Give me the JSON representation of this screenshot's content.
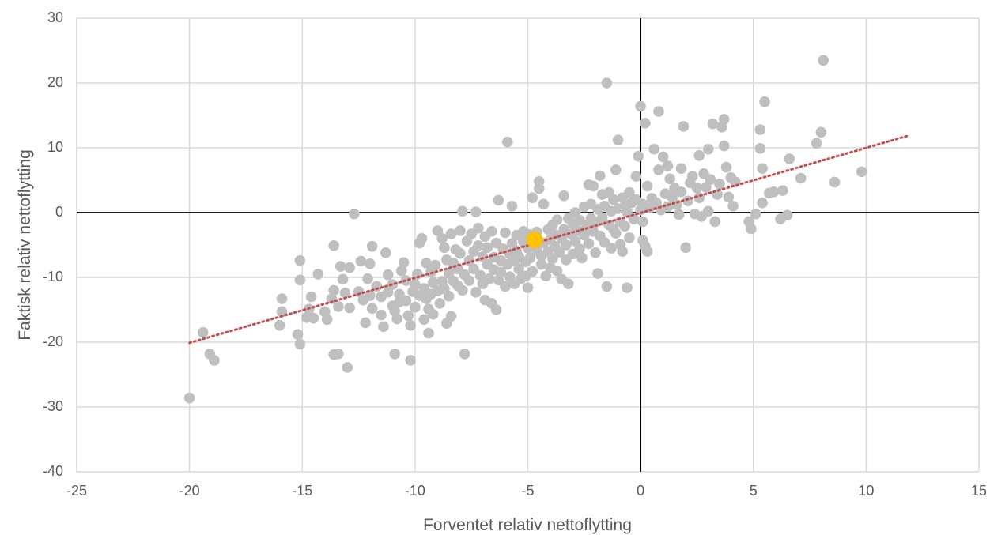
{
  "chart_data": {
    "type": "scatter",
    "title": "",
    "xlabel": "Forventet relativ nettoflytting",
    "ylabel": "Faktisk relativ nettoflytting",
    "xlim": [
      -25,
      15
    ],
    "ylim": [
      -40,
      30
    ],
    "x_ticks": [
      "-25",
      "-20",
      "-15",
      "-10",
      "-5",
      "0",
      "5",
      "10",
      "15"
    ],
    "y_ticks": [
      "-40",
      "-30",
      "-20",
      "-10",
      "0",
      "10",
      "20",
      "30"
    ],
    "grid": true,
    "legend": "none",
    "colors": {
      "points": "#bfbfbf",
      "highlight": "#ffc000",
      "trendline": "#c0504d",
      "gridline": "#d9d9d9",
      "zero_axes": "#000000"
    },
    "trendline": {
      "style": "dotted",
      "x": [
        -20,
        11.8
      ],
      "y": [
        -20.1,
        11.8
      ]
    },
    "highlight": {
      "x": -4.7,
      "y": -4.2
    },
    "series": [
      {
        "points": [
          [
            -20,
            -28.6
          ],
          [
            -19.4,
            -18.5
          ],
          [
            -19.1,
            -21.8
          ],
          [
            -18.9,
            -22.8
          ],
          [
            -16.0,
            -17.4
          ],
          [
            -15.9,
            -15.3
          ],
          [
            -15.9,
            -13.3
          ],
          [
            -15.2,
            -18.8
          ],
          [
            -15.1,
            -20.3
          ],
          [
            -15.1,
            -10.4
          ],
          [
            -15.1,
            -7.4
          ],
          [
            -14.8,
            -16.2
          ],
          [
            -14.7,
            -14.9
          ],
          [
            -14.6,
            -13.0
          ],
          [
            -14.5,
            -16.3
          ],
          [
            -14.3,
            -9.5
          ],
          [
            -14.0,
            -15.3
          ],
          [
            -13.9,
            -16.5
          ],
          [
            -13.7,
            -13.3
          ],
          [
            -13.6,
            -12.0
          ],
          [
            -13.6,
            -5.1
          ],
          [
            -13.6,
            -21.9
          ],
          [
            -13.4,
            -21.8
          ],
          [
            -13.4,
            -14.5
          ],
          [
            -13.3,
            -8.3
          ],
          [
            -13.2,
            -10.3
          ],
          [
            -13.1,
            -12.4
          ],
          [
            -13.0,
            -23.9
          ],
          [
            -12.9,
            -14.7
          ],
          [
            -12.9,
            -8.5
          ],
          [
            -12.7,
            -0.2
          ],
          [
            -12.5,
            -12.2
          ],
          [
            -12.4,
            -7.5
          ],
          [
            -12.3,
            -13.5
          ],
          [
            -12.2,
            -17.0
          ],
          [
            -12.1,
            -10.2
          ],
          [
            -12.0,
            -12.8
          ],
          [
            -12.0,
            -7.9
          ],
          [
            -11.9,
            -14.8
          ],
          [
            -11.9,
            -5.2
          ],
          [
            -11.7,
            -11.4
          ],
          [
            -11.5,
            -13.0
          ],
          [
            -11.5,
            -15.8
          ],
          [
            -11.4,
            -17.6
          ],
          [
            -11.3,
            -6.2
          ],
          [
            -11.2,
            -12.3
          ],
          [
            -11.2,
            -9.6
          ],
          [
            -11.0,
            -14.4
          ],
          [
            -11.0,
            -11.1
          ],
          [
            -10.9,
            -15.2
          ],
          [
            -10.9,
            -21.8
          ],
          [
            -10.8,
            -16.4
          ],
          [
            -10.7,
            -13.8
          ],
          [
            -10.7,
            -12.6
          ],
          [
            -10.6,
            -9.0
          ],
          [
            -10.5,
            -7.7
          ],
          [
            -10.4,
            -10.5
          ],
          [
            -10.4,
            -13.6
          ],
          [
            -10.3,
            -15.9
          ],
          [
            -10.2,
            -17.4
          ],
          [
            -10.2,
            -22.8
          ],
          [
            -10.1,
            -12.2
          ],
          [
            -10.0,
            -11.1
          ],
          [
            -10.0,
            -14.6
          ],
          [
            -9.9,
            -9.5
          ],
          [
            -9.8,
            -12.8
          ],
          [
            -9.8,
            -4.7
          ],
          [
            -9.7,
            -4.0
          ],
          [
            -9.6,
            -11.7
          ],
          [
            -9.6,
            -16.5
          ],
          [
            -9.5,
            -13.3
          ],
          [
            -9.5,
            -7.8
          ],
          [
            -9.4,
            -14.9
          ],
          [
            -9.4,
            -18.6
          ],
          [
            -9.3,
            -12.6
          ],
          [
            -9.3,
            -9.2
          ],
          [
            -9.2,
            -10.8
          ],
          [
            -9.2,
            -15.7
          ],
          [
            -9.1,
            -8.1
          ],
          [
            -9.0,
            -12.1
          ],
          [
            -9.0,
            -2.8
          ],
          [
            -8.9,
            -14.0
          ],
          [
            -8.8,
            -10.6
          ],
          [
            -8.8,
            -4.0
          ],
          [
            -8.7,
            -5.4
          ],
          [
            -8.7,
            -11.8
          ],
          [
            -8.6,
            -7.3
          ],
          [
            -8.6,
            -17.1
          ],
          [
            -8.5,
            -9.4
          ],
          [
            -8.5,
            -12.9
          ],
          [
            -8.4,
            -3.3
          ],
          [
            -8.4,
            -16.0
          ],
          [
            -8.3,
            -7.8
          ],
          [
            -8.3,
            -10.6
          ],
          [
            -8.2,
            -5.7
          ],
          [
            -8.1,
            -11.3
          ],
          [
            -8.1,
            -8.7
          ],
          [
            -8.0,
            -2.8
          ],
          [
            -8.0,
            -6.3
          ],
          [
            -7.9,
            -12.0
          ],
          [
            -7.9,
            0.2
          ],
          [
            -7.8,
            -21.8
          ],
          [
            -7.8,
            -9.6
          ],
          [
            -7.7,
            -4.4
          ],
          [
            -7.6,
            -7.4
          ],
          [
            -7.6,
            -10.5
          ],
          [
            -7.5,
            -3.3
          ],
          [
            -7.4,
            -6.0
          ],
          [
            -7.4,
            -8.7
          ],
          [
            -7.3,
            0.1
          ],
          [
            -7.3,
            -12.3
          ],
          [
            -7.2,
            -2.4
          ],
          [
            -7.2,
            -5.1
          ],
          [
            -7.1,
            -9.7
          ],
          [
            -7.0,
            -6.8
          ],
          [
            -7.0,
            -11.0
          ],
          [
            -6.9,
            -3.7
          ],
          [
            -6.9,
            -13.5
          ],
          [
            -6.8,
            -8.0
          ],
          [
            -6.8,
            -5.4
          ],
          [
            -6.7,
            -10.2
          ],
          [
            -6.6,
            -2.9
          ],
          [
            -6.6,
            -14.0
          ],
          [
            -6.5,
            -6.9
          ],
          [
            -6.5,
            -8.8
          ],
          [
            -6.4,
            -15.0
          ],
          [
            -6.4,
            -4.7
          ],
          [
            -6.3,
            -10.4
          ],
          [
            -6.3,
            1.9
          ],
          [
            -6.2,
            -7.4
          ],
          [
            -6.2,
            -9.2
          ],
          [
            -6.1,
            -5.6
          ],
          [
            -6.0,
            -11.4
          ],
          [
            -6.0,
            -3.1
          ],
          [
            -5.9,
            -8.0
          ],
          [
            -5.9,
            10.9
          ],
          [
            -5.8,
            -6.4
          ],
          [
            -5.8,
            -9.9
          ],
          [
            -5.7,
            -4.8
          ],
          [
            -5.7,
            1.0
          ],
          [
            -5.6,
            -7.5
          ],
          [
            -5.6,
            -11.0
          ],
          [
            -5.5,
            -5.9
          ],
          [
            -5.5,
            -3.5
          ],
          [
            -5.4,
            -8.7
          ],
          [
            -5.4,
            -6.8
          ],
          [
            -5.3,
            -10.2
          ],
          [
            -5.2,
            -4.5
          ],
          [
            -5.2,
            -2.9
          ],
          [
            -5.1,
            -7.6
          ],
          [
            -5.1,
            -9.8
          ],
          [
            -5.0,
            -5.5
          ],
          [
            -5.0,
            -11.6
          ],
          [
            -4.9,
            -3.4
          ],
          [
            -4.9,
            -7.0
          ],
          [
            -4.8,
            -9.1
          ],
          [
            -4.8,
            2.3
          ],
          [
            -4.6,
            -5.9
          ],
          [
            -4.6,
            -3.0
          ],
          [
            -4.5,
            3.7
          ],
          [
            -4.5,
            4.8
          ],
          [
            -4.4,
            -6.7
          ],
          [
            -4.4,
            -8.0
          ],
          [
            -4.3,
            -4.7
          ],
          [
            -4.3,
            1.3
          ],
          [
            -4.2,
            -9.8
          ],
          [
            -4.1,
            -2.6
          ],
          [
            -4.1,
            -6.0
          ],
          [
            -4.0,
            -8.5
          ],
          [
            -4.0,
            -4.2
          ],
          [
            -3.9,
            -1.9
          ],
          [
            -3.9,
            -7.1
          ],
          [
            -3.8,
            -5.2
          ],
          [
            -3.8,
            -3.4
          ],
          [
            -3.7,
            -9.0
          ],
          [
            -3.7,
            -1.1
          ],
          [
            -3.6,
            -6.1
          ],
          [
            -3.5,
            -10.3
          ],
          [
            -3.5,
            -4.0
          ],
          [
            -3.4,
            2.6
          ],
          [
            -3.4,
            -2.6
          ],
          [
            -3.3,
            -7.3
          ],
          [
            -3.3,
            -5.0
          ],
          [
            -3.2,
            -0.9
          ],
          [
            -3.2,
            -11.0
          ],
          [
            -3.1,
            -3.3
          ],
          [
            -3.0,
            -6.4
          ],
          [
            -3.0,
            -1.7
          ],
          [
            -2.9,
            -4.4
          ],
          [
            -2.9,
            0.0
          ],
          [
            -2.8,
            -2.8
          ],
          [
            -2.7,
            -5.6
          ],
          [
            -2.7,
            -1.2
          ],
          [
            -2.6,
            -7.0
          ],
          [
            -2.5,
            -3.5
          ],
          [
            -2.5,
            0.9
          ],
          [
            -2.4,
            -2.0
          ],
          [
            -2.3,
            -4.8
          ],
          [
            -2.3,
            4.3
          ],
          [
            -2.2,
            -0.9
          ],
          [
            -2.2,
            1.3
          ],
          [
            -2.1,
            -2.9
          ],
          [
            -2.1,
            4.1
          ],
          [
            -2.0,
            -6.2
          ],
          [
            -2.0,
            -1.5
          ],
          [
            -1.9,
            0.5
          ],
          [
            -1.9,
            -9.4
          ],
          [
            -1.8,
            5.7
          ],
          [
            -1.8,
            -3.6
          ],
          [
            -1.7,
            -0.8
          ],
          [
            -1.7,
            2.8
          ],
          [
            -1.6,
            -4.6
          ],
          [
            -1.6,
            1.0
          ],
          [
            -1.5,
            -11.4
          ],
          [
            -1.5,
            20.0
          ],
          [
            -1.4,
            -1.9
          ],
          [
            -1.4,
            3.1
          ],
          [
            -1.3,
            -5.5
          ],
          [
            -1.3,
            0.2
          ],
          [
            -1.2,
            -2.6
          ],
          [
            -1.2,
            2.0
          ],
          [
            -1.1,
            6.6
          ],
          [
            -1.1,
            -3.2
          ],
          [
            -1.0,
            11.2
          ],
          [
            -1.0,
            0.6
          ],
          [
            -0.9,
            -4.9
          ],
          [
            -0.9,
            -1.4
          ],
          [
            -0.8,
            2.3
          ],
          [
            -0.8,
            -6.0
          ],
          [
            -0.7,
            1.0
          ],
          [
            -0.7,
            -2.1
          ],
          [
            -0.6,
            -11.6
          ],
          [
            -0.6,
            0.1
          ],
          [
            -0.5,
            3.1
          ],
          [
            -0.5,
            -3.9
          ],
          [
            -0.4,
            1.5
          ],
          [
            -0.3,
            -1.0
          ],
          [
            -0.2,
            5.6
          ],
          [
            -0.2,
            2.0
          ],
          [
            -0.1,
            8.7
          ],
          [
            0.0,
            16.4
          ],
          [
            0.0,
            0.4
          ],
          [
            0.1,
            -4.3
          ],
          [
            0.1,
            1.3
          ],
          [
            0.1,
            -1.4
          ],
          [
            0.2,
            13.8
          ],
          [
            0.2,
            -5.2
          ],
          [
            0.3,
            4.1
          ],
          [
            0.3,
            -6.0
          ],
          [
            0.4,
            0.7
          ],
          [
            0.5,
            2.2
          ],
          [
            0.6,
            9.8
          ],
          [
            0.7,
            1.5
          ],
          [
            0.8,
            15.6
          ],
          [
            0.8,
            6.6
          ],
          [
            0.9,
            0.4
          ],
          [
            1.0,
            8.6
          ],
          [
            1.1,
            2.9
          ],
          [
            1.2,
            7.2
          ],
          [
            1.2,
            0.9
          ],
          [
            1.3,
            5.2
          ],
          [
            1.4,
            2.4
          ],
          [
            1.5,
            3.8
          ],
          [
            1.6,
            1.2
          ],
          [
            1.7,
            -0.3
          ],
          [
            1.8,
            6.8
          ],
          [
            1.8,
            3.2
          ],
          [
            1.9,
            13.3
          ],
          [
            2.0,
            -5.4
          ],
          [
            2.1,
            1.8
          ],
          [
            2.2,
            4.6
          ],
          [
            2.3,
            5.6
          ],
          [
            2.4,
            -0.2
          ],
          [
            2.5,
            3.8
          ],
          [
            2.6,
            8.8
          ],
          [
            2.6,
            2.3
          ],
          [
            2.7,
            -0.6
          ],
          [
            2.8,
            6.0
          ],
          [
            2.9,
            3.9
          ],
          [
            3.0,
            9.8
          ],
          [
            3.0,
            0.2
          ],
          [
            3.1,
            5.1
          ],
          [
            3.2,
            13.7
          ],
          [
            3.3,
            -1.4
          ],
          [
            3.4,
            2.8
          ],
          [
            3.5,
            4.4
          ],
          [
            3.6,
            13.2
          ],
          [
            3.7,
            14.4
          ],
          [
            3.7,
            10.3
          ],
          [
            3.8,
            7.0
          ],
          [
            3.9,
            2.4
          ],
          [
            4.0,
            5.4
          ],
          [
            4.1,
            1.0
          ],
          [
            4.2,
            4.7
          ],
          [
            4.8,
            -1.4
          ],
          [
            4.9,
            -2.5
          ],
          [
            5.1,
            -0.2
          ],
          [
            5.3,
            12.8
          ],
          [
            5.3,
            9.9
          ],
          [
            5.4,
            6.8
          ],
          [
            5.4,
            1.5
          ],
          [
            5.5,
            17.1
          ],
          [
            5.7,
            3.0
          ],
          [
            5.9,
            3.2
          ],
          [
            6.2,
            -1.0
          ],
          [
            6.3,
            3.4
          ],
          [
            6.5,
            -0.4
          ],
          [
            6.6,
            8.3
          ],
          [
            7.1,
            5.3
          ],
          [
            7.8,
            10.7
          ],
          [
            8.0,
            12.4
          ],
          [
            8.1,
            23.5
          ],
          [
            8.6,
            4.7
          ],
          [
            9.8,
            6.3
          ]
        ]
      }
    ]
  }
}
